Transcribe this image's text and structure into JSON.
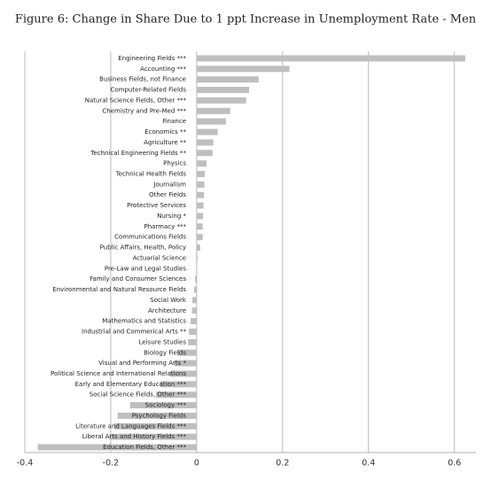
{
  "chart_data": {
    "type": "bar",
    "orientation": "horizontal",
    "title": "Figure 6: Change in Share Due to 1 ppt Increase in Unemployment Rate - Men",
    "categories": [
      "Engineering Fields ***",
      "Accounting ***",
      "Business Fields, not Finance",
      "Computer-Related Fields",
      "Natural Science Fields, Other ***",
      "Chemistry and Pre-Med ***",
      "Finance",
      "Economics **",
      "Agriculture **",
      "Technical Engineering Fields **",
      "Physics",
      "Technical Health Fields",
      "Journalism",
      "Other Fields",
      "Protective Services",
      "Nursing *",
      "Pharmacy ***",
      "Communications Fields",
      "Public Affairs, Health, Policy",
      "Actuarial Science",
      "Pre-Law and Legal Studies",
      "Family and Consumer Sciences",
      "Environmental and Natural Resource Fields",
      "Social Work",
      "Architecture",
      "Mathematics and Statistics",
      "Industrial and Commerical Arts **",
      "Leisure Studies",
      "Biology Fields",
      "Visual and Performing Arts *",
      "Political Science and International Relations",
      "Early and Elementary Education ***",
      "Social Science Fields, Other ***",
      "Sociology ***",
      "Psychology Fields",
      "Literature and Languages Fields ***",
      "Liberal Arts and History Fields ***",
      "Education Fields, Other ***"
    ],
    "values": [
      0.625,
      0.216,
      0.144,
      0.122,
      0.115,
      0.078,
      0.068,
      0.049,
      0.039,
      0.037,
      0.023,
      0.019,
      0.018,
      0.017,
      0.016,
      0.015,
      0.014,
      0.014,
      0.008,
      0.002,
      0.0,
      -0.004,
      -0.006,
      -0.01,
      -0.011,
      -0.014,
      -0.018,
      -0.02,
      -0.045,
      -0.052,
      -0.062,
      -0.085,
      -0.095,
      -0.155,
      -0.184,
      -0.192,
      -0.203,
      -0.37
    ],
    "color": "#bfbfbf",
    "xlim": [
      -0.4,
      0.65
    ],
    "xticks": [
      -0.4,
      -0.2,
      0,
      0.2,
      0.4,
      0.6
    ],
    "grid": true
  }
}
